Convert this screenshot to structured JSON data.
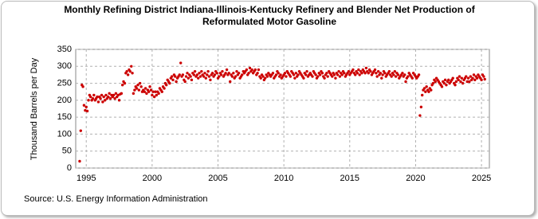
{
  "chart_data": {
    "type": "scatter",
    "title": "Monthly Refining District Indiana-Illinois-Kentucky Refinery and Blender Net Production of Reformulated Motor Gasoline",
    "y_label": "Thousand Barrels per Day",
    "source": "Source: U.S. Energy Information Administration",
    "color": "#cc0000",
    "grid": true,
    "xlim": [
      1994.2,
      2025.6
    ],
    "xticks": [
      1995,
      2000,
      2005,
      2010,
      2015,
      2020,
      2025
    ],
    "ylim": [
      0,
      350
    ],
    "yticks": [
      0,
      50,
      100,
      150,
      200,
      250,
      300,
      350
    ],
    "x": [
      1994.5,
      1994.58,
      1994.67,
      1994.75,
      1994.83,
      1994.92,
      1995,
      1995.08,
      1995.17,
      1995.25,
      1995.33,
      1995.42,
      1995.5,
      1995.58,
      1995.67,
      1995.75,
      1995.83,
      1995.92,
      1996,
      1996.08,
      1996.17,
      1996.25,
      1996.33,
      1996.42,
      1996.5,
      1996.58,
      1996.67,
      1996.75,
      1996.83,
      1996.92,
      1997,
      1997.08,
      1997.17,
      1997.25,
      1997.33,
      1997.42,
      1997.5,
      1997.58,
      1997.67,
      1997.75,
      1997.83,
      1997.92,
      1998,
      1998.08,
      1998.17,
      1998.25,
      1998.33,
      1998.42,
      1998.5,
      1998.58,
      1998.67,
      1998.75,
      1998.83,
      1998.92,
      1999,
      1999.08,
      1999.17,
      1999.25,
      1999.33,
      1999.42,
      1999.5,
      1999.58,
      1999.67,
      1999.75,
      1999.83,
      1999.92,
      2000,
      2000.08,
      2000.17,
      2000.25,
      2000.33,
      2000.42,
      2000.5,
      2000.58,
      2000.67,
      2000.75,
      2000.83,
      2000.92,
      2001,
      2001.08,
      2001.17,
      2001.25,
      2001.33,
      2001.42,
      2001.5,
      2001.58,
      2001.67,
      2001.75,
      2001.83,
      2001.92,
      2002,
      2002.08,
      2002.17,
      2002.25,
      2002.33,
      2002.42,
      2002.5,
      2002.58,
      2002.67,
      2002.75,
      2002.83,
      2002.92,
      2003,
      2003.08,
      2003.17,
      2003.25,
      2003.33,
      2003.42,
      2003.5,
      2003.58,
      2003.67,
      2003.75,
      2003.83,
      2003.92,
      2004,
      2004.08,
      2004.17,
      2004.25,
      2004.33,
      2004.42,
      2004.5,
      2004.58,
      2004.67,
      2004.75,
      2004.83,
      2004.92,
      2005,
      2005.08,
      2005.17,
      2005.25,
      2005.33,
      2005.42,
      2005.5,
      2005.58,
      2005.67,
      2005.75,
      2005.83,
      2005.92,
      2006,
      2006.08,
      2006.17,
      2006.25,
      2006.33,
      2006.42,
      2006.5,
      2006.58,
      2006.67,
      2006.75,
      2006.83,
      2006.92,
      2007,
      2007.08,
      2007.17,
      2007.25,
      2007.33,
      2007.42,
      2007.5,
      2007.58,
      2007.67,
      2007.75,
      2007.83,
      2007.92,
      2008,
      2008.08,
      2008.17,
      2008.25,
      2008.33,
      2008.42,
      2008.5,
      2008.58,
      2008.67,
      2008.75,
      2008.83,
      2008.92,
      2009,
      2009.08,
      2009.17,
      2009.25,
      2009.33,
      2009.42,
      2009.5,
      2009.58,
      2009.67,
      2009.75,
      2009.83,
      2009.92,
      2010,
      2010.08,
      2010.17,
      2010.25,
      2010.33,
      2010.42,
      2010.5,
      2010.58,
      2010.67,
      2010.75,
      2010.83,
      2010.92,
      2011,
      2011.08,
      2011.17,
      2011.25,
      2011.33,
      2011.42,
      2011.5,
      2011.58,
      2011.67,
      2011.75,
      2011.83,
      2011.92,
      2012,
      2012.08,
      2012.17,
      2012.25,
      2012.33,
      2012.42,
      2012.5,
      2012.58,
      2012.67,
      2012.75,
      2012.83,
      2012.92,
      2013,
      2013.08,
      2013.17,
      2013.25,
      2013.33,
      2013.42,
      2013.5,
      2013.58,
      2013.67,
      2013.75,
      2013.83,
      2013.92,
      2014,
      2014.08,
      2014.17,
      2014.25,
      2014.33,
      2014.42,
      2014.5,
      2014.58,
      2014.67,
      2014.75,
      2014.83,
      2014.92,
      2015,
      2015.08,
      2015.17,
      2015.25,
      2015.33,
      2015.42,
      2015.5,
      2015.58,
      2015.67,
      2015.75,
      2015.83,
      2015.92,
      2016,
      2016.08,
      2016.17,
      2016.25,
      2016.33,
      2016.42,
      2016.5,
      2016.58,
      2016.67,
      2016.75,
      2016.83,
      2016.92,
      2017,
      2017.08,
      2017.17,
      2017.25,
      2017.33,
      2017.42,
      2017.5,
      2017.58,
      2017.67,
      2017.75,
      2017.83,
      2017.92,
      2018,
      2018.08,
      2018.17,
      2018.25,
      2018.33,
      2018.42,
      2018.5,
      2018.58,
      2018.67,
      2018.75,
      2018.83,
      2018.92,
      2019,
      2019.08,
      2019.17,
      2019.25,
      2019.33,
      2019.42,
      2019.5,
      2019.58,
      2019.67,
      2019.75,
      2019.83,
      2019.92,
      2020,
      2020.08,
      2020.17,
      2020.25,
      2020.33,
      2020.42,
      2020.5,
      2020.58,
      2020.67,
      2020.75,
      2020.83,
      2020.92,
      2021,
      2021.08,
      2021.17,
      2021.25,
      2021.33,
      2021.42,
      2021.5,
      2021.58,
      2021.67,
      2021.75,
      2021.83,
      2021.92,
      2022,
      2022.08,
      2022.17,
      2022.25,
      2022.33,
      2022.42,
      2022.5,
      2022.58,
      2022.67,
      2022.75,
      2022.83,
      2022.92,
      2023,
      2023.08,
      2023.17,
      2023.25,
      2023.33,
      2023.42,
      2023.5,
      2023.58,
      2023.67,
      2023.75,
      2023.83,
      2023.92,
      2024,
      2024.08,
      2024.17,
      2024.25,
      2024.33,
      2024.42,
      2024.5,
      2024.58,
      2024.67,
      2024.75,
      2024.83,
      2024.92,
      2025,
      2025.08,
      2025.17,
      2025.25
    ],
    "values": [
      20,
      110,
      245,
      240,
      185,
      170,
      180,
      168,
      200,
      215,
      210,
      200,
      205,
      215,
      200,
      205,
      210,
      195,
      210,
      205,
      215,
      195,
      210,
      200,
      215,
      205,
      210,
      220,
      205,
      215,
      210,
      215,
      205,
      220,
      210,
      215,
      200,
      218,
      220,
      245,
      255,
      250,
      280,
      285,
      275,
      290,
      285,
      300,
      280,
      220,
      230,
      240,
      235,
      245,
      230,
      250,
      240,
      225,
      230,
      225,
      235,
      220,
      230,
      225,
      240,
      230,
      215,
      225,
      210,
      225,
      215,
      225,
      220,
      235,
      230,
      225,
      240,
      235,
      250,
      245,
      260,
      255,
      250,
      265,
      270,
      260,
      275,
      270,
      255,
      265,
      270,
      275,
      310,
      270,
      275,
      260,
      255,
      270,
      280,
      265,
      275,
      270,
      260,
      280,
      275,
      285,
      270,
      275,
      265,
      280,
      270,
      285,
      275,
      270,
      280,
      265,
      275,
      285,
      270,
      260,
      275,
      280,
      270,
      275,
      285,
      280,
      265,
      270,
      280,
      275,
      285,
      270,
      275,
      280,
      290,
      275,
      280,
      255,
      275,
      270,
      280,
      265,
      270,
      285,
      275,
      280,
      265,
      270,
      275,
      285,
      280,
      285,
      290,
      275,
      280,
      295,
      285,
      290,
      280,
      285,
      290,
      275,
      280,
      290,
      270,
      265,
      275,
      270,
      260,
      265,
      275,
      270,
      280,
      275,
      270,
      275,
      280,
      265,
      270,
      275,
      285,
      280,
      270,
      275,
      265,
      270,
      275,
      280,
      270,
      285,
      280,
      275,
      270,
      285,
      280,
      275,
      265,
      280,
      270,
      275,
      285,
      280,
      275,
      270,
      265,
      280,
      275,
      285,
      270,
      275,
      280,
      275,
      270,
      285,
      280,
      275,
      265,
      270,
      280,
      275,
      285,
      280,
      270,
      265,
      275,
      280,
      270,
      285,
      280,
      275,
      270,
      280,
      275,
      265,
      280,
      275,
      285,
      270,
      280,
      275,
      285,
      280,
      270,
      275,
      280,
      285,
      275,
      280,
      285,
      290,
      280,
      275,
      285,
      280,
      290,
      275,
      285,
      280,
      290,
      285,
      280,
      295,
      285,
      280,
      290,
      285,
      275,
      280,
      285,
      290,
      280,
      270,
      285,
      275,
      280,
      265,
      275,
      285,
      280,
      270,
      275,
      280,
      285,
      275,
      270,
      280,
      275,
      285,
      270,
      280,
      275,
      265,
      270,
      275,
      280,
      270,
      275,
      255,
      265,
      270,
      280,
      275,
      270,
      265,
      280,
      275,
      270,
      265,
      270,
      275,
      155,
      180,
      215,
      230,
      235,
      225,
      240,
      230,
      225,
      235,
      230,
      245,
      250,
      260,
      255,
      265,
      260,
      255,
      250,
      245,
      240,
      255,
      250,
      260,
      245,
      255,
      260,
      250,
      255,
      260,
      265,
      250,
      245,
      255,
      265,
      260,
      270,
      255,
      265,
      250,
      260,
      265,
      270,
      255,
      265,
      255,
      270,
      260,
      265,
      275,
      260,
      270,
      265,
      275,
      270,
      265,
      260,
      275,
      270,
      262
    ]
  }
}
